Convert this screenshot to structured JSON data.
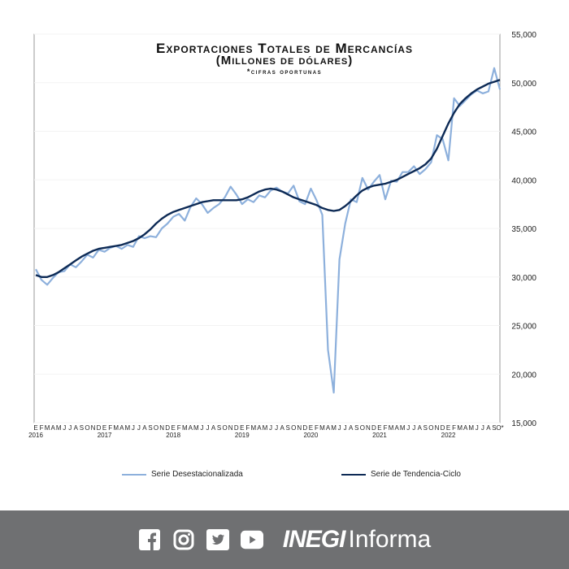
{
  "chart_data": {
    "type": "line",
    "title": "Exportaciones Totales de Mercancías",
    "subtitle": "(Millones de dólares)",
    "note": "*cifras oportunas",
    "xlabel": "",
    "ylabel": "",
    "ylim": [
      15000,
      55000
    ],
    "y_ticks": [
      "15,000",
      "20,000",
      "25,000",
      "30,000",
      "35,000",
      "40,000",
      "45,000",
      "50,000",
      "55,000"
    ],
    "y_tick_values": [
      15000,
      20000,
      25000,
      30000,
      35000,
      40000,
      45000,
      50000,
      55000
    ],
    "month_labels": [
      "E",
      "F",
      "M",
      "A",
      "M",
      "J",
      "J",
      "A",
      "S",
      "O",
      "N",
      "D",
      "E",
      "F",
      "M",
      "A",
      "M",
      "J",
      "J",
      "A",
      "S",
      "O",
      "N",
      "D",
      "E",
      "F",
      "M",
      "A",
      "M",
      "J",
      "J",
      "A",
      "S",
      "O",
      "N",
      "D",
      "E",
      "F",
      "M",
      "A",
      "M",
      "J",
      "J",
      "A",
      "S",
      "O",
      "N",
      "D",
      "E",
      "F",
      "M",
      "A",
      "M",
      "J",
      "J",
      "A",
      "S",
      "O",
      "N",
      "D",
      "E",
      "F",
      "M",
      "A",
      "M",
      "J",
      "J",
      "A",
      "S",
      "O",
      "N",
      "D",
      "E",
      "F",
      "M",
      "A",
      "M",
      "J",
      "J",
      "A",
      "S",
      "O*"
    ],
    "year_labels": [
      "2016",
      "2017",
      "2018",
      "2019",
      "2020",
      "2021",
      "2022"
    ],
    "grid": true,
    "legend_position": "bottom",
    "series": [
      {
        "name": "Serie Desestacionalizada",
        "color": "#8db0dc",
        "values": [
          30800,
          29700,
          29200,
          29900,
          30500,
          30600,
          31300,
          31000,
          31600,
          32300,
          32000,
          32800,
          32600,
          33000,
          33200,
          32900,
          33300,
          33100,
          34200,
          34000,
          34200,
          34100,
          35000,
          35500,
          36200,
          36500,
          35800,
          37200,
          38100,
          37500,
          36600,
          37100,
          37500,
          38200,
          39300,
          38500,
          37500,
          38000,
          37700,
          38400,
          38200,
          38900,
          39200,
          38800,
          38600,
          39400,
          37800,
          37500,
          39100,
          37900,
          36400,
          22500,
          18100,
          31800,
          35500,
          38000,
          37700,
          40200,
          39000,
          39800,
          40500,
          38000,
          39900,
          39800,
          40800,
          40800,
          41400,
          40600,
          41100,
          41800,
          44600,
          44200,
          42000,
          48400,
          47600,
          48200,
          48800,
          49200,
          48900,
          49100,
          51500,
          49300
        ]
      },
      {
        "name": "Serie de Tendencia-Ciclo",
        "color": "#0d2a55",
        "values": [
          30200,
          30000,
          30000,
          30200,
          30500,
          30900,
          31300,
          31700,
          32100,
          32400,
          32700,
          32900,
          33000,
          33100,
          33200,
          33300,
          33500,
          33700,
          34000,
          34400,
          34900,
          35500,
          36000,
          36400,
          36700,
          36900,
          37100,
          37300,
          37500,
          37700,
          37800,
          37900,
          37900,
          37900,
          37900,
          37900,
          38000,
          38200,
          38500,
          38800,
          39000,
          39100,
          39000,
          38800,
          38500,
          38200,
          38000,
          37800,
          37600,
          37400,
          37100,
          36900,
          36800,
          36900,
          37300,
          37800,
          38400,
          38900,
          39200,
          39400,
          39500,
          39600,
          39800,
          40000,
          40300,
          40600,
          40900,
          41200,
          41600,
          42200,
          43200,
          44500,
          45800,
          46900,
          47800,
          48400,
          48900,
          49300,
          49600,
          49900,
          50100,
          50300
        ]
      }
    ]
  },
  "footer": {
    "brand_bold": "INEGI",
    "brand_light": "Informa",
    "icons": [
      "facebook-icon",
      "instagram-icon",
      "twitter-icon",
      "youtube-icon"
    ]
  }
}
